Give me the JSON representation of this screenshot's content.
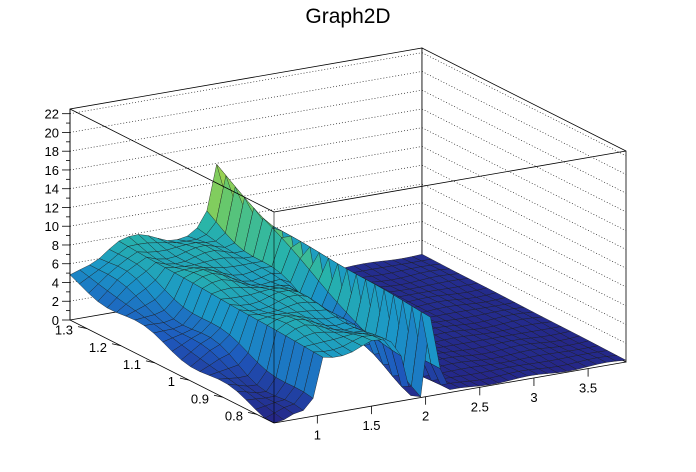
{
  "chart_data": {
    "type": "surface",
    "title": "Graph2D",
    "xlabel": "",
    "ylabel": "",
    "zlabel": "",
    "xlim": [
      0.6,
      3.85
    ],
    "ylim": [
      0.75,
      1.35
    ],
    "zlim": [
      0,
      22.5
    ],
    "x_ticks": [
      "1",
      "1.5",
      "2",
      "2.5",
      "3",
      "3.5"
    ],
    "y_ticks": [
      "0.8",
      "0.9",
      "1",
      "1.1",
      "1.2",
      "1.3"
    ],
    "z_ticks": [
      "0",
      "2",
      "4",
      "6",
      "8",
      "10",
      "12",
      "14",
      "16",
      "18",
      "20",
      "22"
    ],
    "grid": true,
    "colormap": "viridis-like (dark blue → cyan → green → yellow)",
    "surface_profile": {
      "x": [
        0.6,
        0.95,
        1.0,
        1.2,
        1.5,
        1.75,
        1.88,
        1.93,
        1.97,
        2.0,
        2.1,
        2.2,
        3.85
      ],
      "z_back_edge": [
        4.5,
        7,
        7.5,
        7.5,
        7,
        7,
        9,
        12,
        15,
        14,
        5,
        0.5,
        0.5
      ],
      "z_front_edge": [
        0.2,
        0.2,
        6,
        6.5,
        6.5,
        6,
        0.2,
        0.2,
        0.2,
        12,
        4,
        0.2,
        0.2
      ]
    }
  }
}
